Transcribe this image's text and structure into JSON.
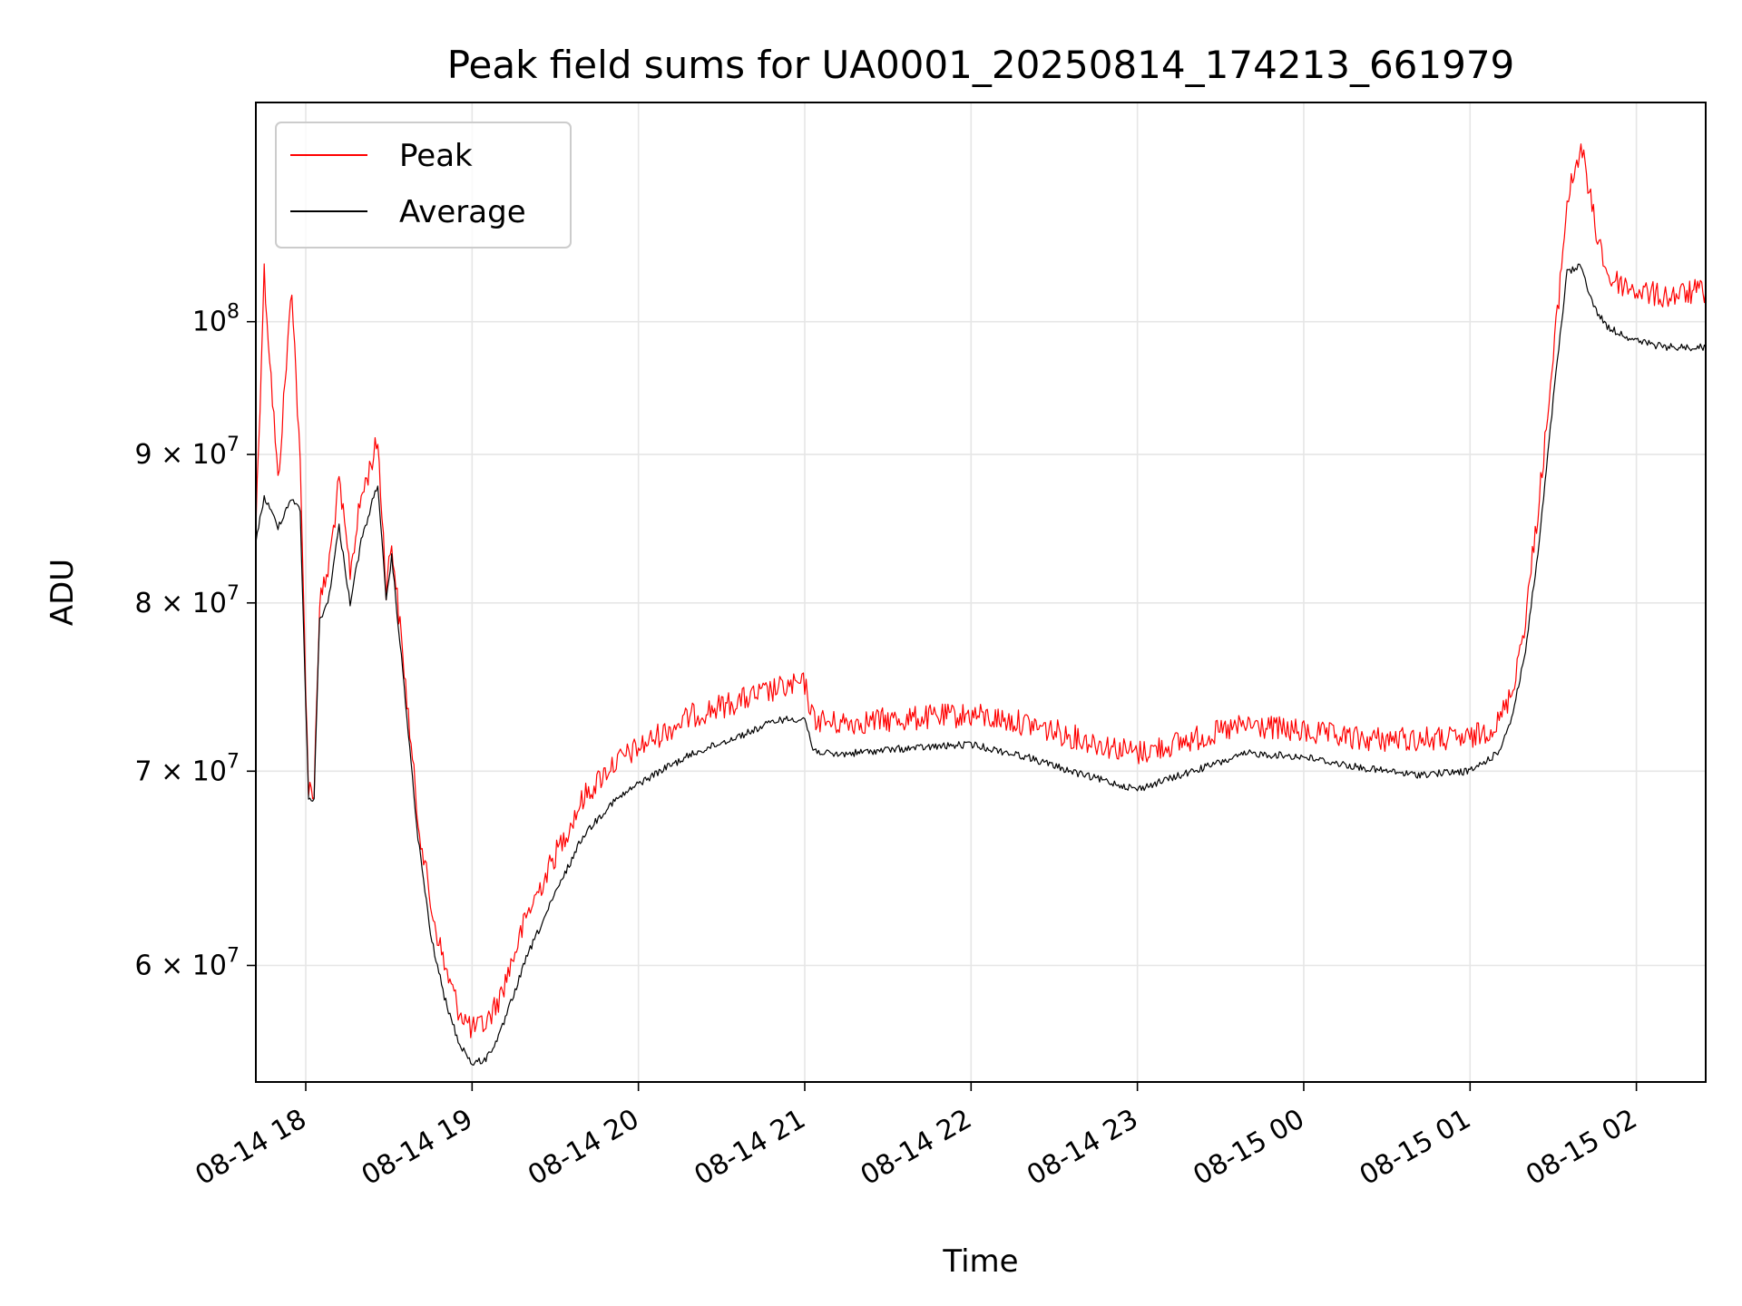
{
  "chart_data": {
    "type": "line",
    "title": "Peak field sums for UA0001_20250814_174213_661979",
    "xlabel": "Time",
    "ylabel": "ADU",
    "y_scale": "log",
    "ylim": [
      54700000,
      119000000
    ],
    "xlim": [
      "2025-08-14 17:42",
      "2025-08-15 02:25"
    ],
    "grid": true,
    "legend": "top-left",
    "x_ticks": [
      {
        "t": "2025-08-14 18:00",
        "label": "08-14 18"
      },
      {
        "t": "2025-08-14 19:00",
        "label": "08-14 19"
      },
      {
        "t": "2025-08-14 20:00",
        "label": "08-14 20"
      },
      {
        "t": "2025-08-14 21:00",
        "label": "08-14 21"
      },
      {
        "t": "2025-08-14 22:00",
        "label": "08-14 22"
      },
      {
        "t": "2025-08-14 23:00",
        "label": "08-14 23"
      },
      {
        "t": "2025-08-15 00:00",
        "label": "08-15 00"
      },
      {
        "t": "2025-08-15 01:00",
        "label": "08-15 01"
      },
      {
        "t": "2025-08-15 02:00",
        "label": "08-15 02"
      }
    ],
    "y_ticks": [
      {
        "value": 60000000,
        "mantissa": "6",
        "exponent": "7"
      },
      {
        "value": 70000000,
        "mantissa": "7",
        "exponent": "7"
      },
      {
        "value": 80000000,
        "mantissa": "8",
        "exponent": "7"
      },
      {
        "value": 90000000,
        "mantissa": "9",
        "exponent": "7"
      },
      {
        "value": 100000000,
        "mantissa": "",
        "exponent": "8"
      }
    ],
    "series": [
      {
        "name": "Peak",
        "color": "#ff0000",
        "points": [
          [
            "2025-08-14 17:42",
            85000000
          ],
          [
            "2025-08-14 17:45",
            104000000
          ],
          [
            "2025-08-14 17:50",
            88000000
          ],
          [
            "2025-08-14 17:55",
            103000000
          ],
          [
            "2025-08-14 17:58",
            89000000
          ],
          [
            "2025-08-14 18:01",
            69000000
          ],
          [
            "2025-08-14 18:03",
            69000000
          ],
          [
            "2025-08-14 18:05",
            80000000
          ],
          [
            "2025-08-14 18:08",
            82000000
          ],
          [
            "2025-08-14 18:12",
            88000000
          ],
          [
            "2025-08-14 18:16",
            82000000
          ],
          [
            "2025-08-14 18:20",
            87000000
          ],
          [
            "2025-08-14 18:26",
            91000000
          ],
          [
            "2025-08-14 18:29",
            81000000
          ],
          [
            "2025-08-14 18:31",
            84000000
          ],
          [
            "2025-08-14 18:36",
            75000000
          ],
          [
            "2025-08-14 18:40",
            68000000
          ],
          [
            "2025-08-14 18:45",
            63000000
          ],
          [
            "2025-08-14 18:50",
            60000000
          ],
          [
            "2025-08-14 18:55",
            58000000
          ],
          [
            "2025-08-14 19:00",
            57000000
          ],
          [
            "2025-08-14 19:05",
            57300000
          ],
          [
            "2025-08-14 19:10",
            58500000
          ],
          [
            "2025-08-14 19:20",
            62500000
          ],
          [
            "2025-08-14 19:30",
            65500000
          ],
          [
            "2025-08-14 19:40",
            68500000
          ],
          [
            "2025-08-14 19:50",
            70300000
          ],
          [
            "2025-08-14 20:00",
            71300000
          ],
          [
            "2025-08-14 20:10",
            72300000
          ],
          [
            "2025-08-14 20:20",
            73200000
          ],
          [
            "2025-08-14 20:30",
            73700000
          ],
          [
            "2025-08-14 20:40",
            74200000
          ],
          [
            "2025-08-14 20:50",
            74700000
          ],
          [
            "2025-08-14 21:00",
            75000000
          ],
          [
            "2025-08-14 21:03",
            73000000
          ],
          [
            "2025-08-14 21:10",
            72700000
          ],
          [
            "2025-08-14 21:30",
            72900000
          ],
          [
            "2025-08-14 22:00",
            73200000
          ],
          [
            "2025-08-14 22:20",
            72700000
          ],
          [
            "2025-08-14 22:40",
            71800000
          ],
          [
            "2025-08-14 23:00",
            71000000
          ],
          [
            "2025-08-14 23:20",
            71800000
          ],
          [
            "2025-08-14 23:40",
            72600000
          ],
          [
            "2025-08-15 00:00",
            72200000
          ],
          [
            "2025-08-15 00:20",
            71800000
          ],
          [
            "2025-08-15 00:40",
            71800000
          ],
          [
            "2025-08-15 01:00",
            71800000
          ],
          [
            "2025-08-15 01:10",
            72700000
          ],
          [
            "2025-08-15 01:15",
            74500000
          ],
          [
            "2025-08-15 01:20",
            79000000
          ],
          [
            "2025-08-15 01:25",
            87000000
          ],
          [
            "2025-08-15 01:30",
            97000000
          ],
          [
            "2025-08-15 01:35",
            110000000
          ],
          [
            "2025-08-15 01:40",
            115000000
          ],
          [
            "2025-08-15 01:45",
            108000000
          ],
          [
            "2025-08-15 01:50",
            103500000
          ],
          [
            "2025-08-15 02:00",
            102500000
          ],
          [
            "2025-08-15 02:10",
            102000000
          ],
          [
            "2025-08-15 02:25",
            102500000
          ]
        ]
      },
      {
        "name": "Average",
        "color": "#000000",
        "points": [
          [
            "2025-08-14 17:42",
            84000000
          ],
          [
            "2025-08-14 17:45",
            87000000
          ],
          [
            "2025-08-14 17:50",
            85000000
          ],
          [
            "2025-08-14 17:55",
            87000000
          ],
          [
            "2025-08-14 17:58",
            86000000
          ],
          [
            "2025-08-14 18:01",
            68500000
          ],
          [
            "2025-08-14 18:03",
            68500000
          ],
          [
            "2025-08-14 18:05",
            79000000
          ],
          [
            "2025-08-14 18:08",
            80000000
          ],
          [
            "2025-08-14 18:12",
            85000000
          ],
          [
            "2025-08-14 18:16",
            80000000
          ],
          [
            "2025-08-14 18:20",
            84000000
          ],
          [
            "2025-08-14 18:26",
            88000000
          ],
          [
            "2025-08-14 18:29",
            80000000
          ],
          [
            "2025-08-14 18:31",
            83000000
          ],
          [
            "2025-08-14 18:36",
            74000000
          ],
          [
            "2025-08-14 18:40",
            67000000
          ],
          [
            "2025-08-14 18:45",
            61500000
          ],
          [
            "2025-08-14 18:50",
            58500000
          ],
          [
            "2025-08-14 18:55",
            56500000
          ],
          [
            "2025-08-14 19:00",
            55500000
          ],
          [
            "2025-08-14 19:05",
            55700000
          ],
          [
            "2025-08-14 19:10",
            56800000
          ],
          [
            "2025-08-14 19:20",
            60500000
          ],
          [
            "2025-08-14 19:30",
            63500000
          ],
          [
            "2025-08-14 19:40",
            66500000
          ],
          [
            "2025-08-14 19:50",
            68200000
          ],
          [
            "2025-08-14 20:00",
            69300000
          ],
          [
            "2025-08-14 20:10",
            70200000
          ],
          [
            "2025-08-14 20:20",
            71000000
          ],
          [
            "2025-08-14 20:30",
            71600000
          ],
          [
            "2025-08-14 20:40",
            72200000
          ],
          [
            "2025-08-14 20:50",
            72900000
          ],
          [
            "2025-08-14 21:00",
            73000000
          ],
          [
            "2025-08-14 21:03",
            71200000
          ],
          [
            "2025-08-14 21:10",
            70900000
          ],
          [
            "2025-08-14 21:30",
            71200000
          ],
          [
            "2025-08-14 22:00",
            71500000
          ],
          [
            "2025-08-14 22:20",
            70800000
          ],
          [
            "2025-08-14 22:40",
            69800000
          ],
          [
            "2025-08-14 23:00",
            69000000
          ],
          [
            "2025-08-14 23:20",
            70000000
          ],
          [
            "2025-08-14 23:40",
            71000000
          ],
          [
            "2025-08-15 00:00",
            70800000
          ],
          [
            "2025-08-15 00:20",
            70200000
          ],
          [
            "2025-08-15 00:40",
            69800000
          ],
          [
            "2025-08-15 01:00",
            70000000
          ],
          [
            "2025-08-15 01:10",
            71000000
          ],
          [
            "2025-08-15 01:15",
            73000000
          ],
          [
            "2025-08-15 01:20",
            77000000
          ],
          [
            "2025-08-15 01:25",
            84000000
          ],
          [
            "2025-08-15 01:30",
            94000000
          ],
          [
            "2025-08-15 01:35",
            104000000
          ],
          [
            "2025-08-15 01:40",
            104500000
          ],
          [
            "2025-08-15 01:45",
            101000000
          ],
          [
            "2025-08-15 01:50",
            99500000
          ],
          [
            "2025-08-15 02:00",
            98500000
          ],
          [
            "2025-08-15 02:10",
            98000000
          ],
          [
            "2025-08-15 02:25",
            98000000
          ]
        ]
      }
    ]
  }
}
